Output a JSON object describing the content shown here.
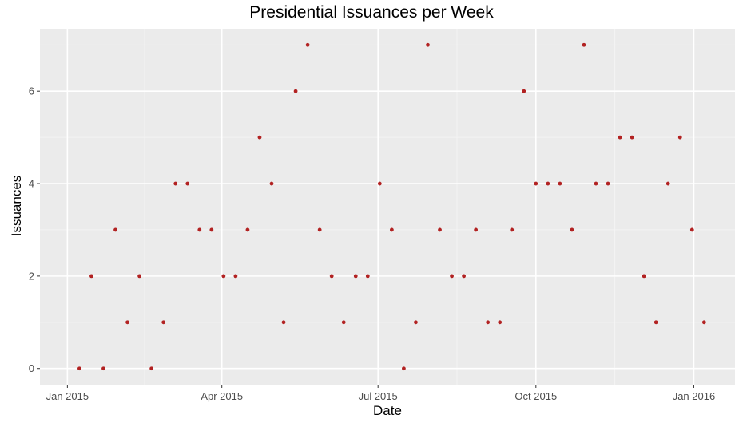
{
  "chart_data": {
    "type": "scatter",
    "title": "Presidential Issuances per Week",
    "xlabel": "Date",
    "ylabel": "Issuances",
    "x_ticks": [
      "Jan 2015",
      "Apr 2015",
      "Jul 2015",
      "Oct 2015",
      "Jan 2016"
    ],
    "x_tick_dates": [
      "2015-01-01",
      "2015-04-01",
      "2015-07-01",
      "2015-10-01",
      "2016-01-01"
    ],
    "y_ticks": [
      0,
      2,
      4,
      6
    ],
    "xlim": [
      "2014-12-16",
      "2016-01-25"
    ],
    "ylim": [
      -0.35,
      7.35
    ],
    "grid": true,
    "point_color": "#b22222",
    "panel_color": "#ebebeb",
    "series": [
      {
        "x": [
          "2015-01-08",
          "2015-01-15",
          "2015-01-22",
          "2015-01-29",
          "2015-02-05",
          "2015-02-12",
          "2015-02-19",
          "2015-02-26",
          "2015-03-05",
          "2015-03-12",
          "2015-03-19",
          "2015-03-26",
          "2015-04-02",
          "2015-04-09",
          "2015-04-16",
          "2015-04-23",
          "2015-04-30",
          "2015-05-07",
          "2015-05-14",
          "2015-05-21",
          "2015-05-28",
          "2015-06-04",
          "2015-06-11",
          "2015-06-18",
          "2015-06-25",
          "2015-07-02",
          "2015-07-09",
          "2015-07-16",
          "2015-07-23",
          "2015-07-30",
          "2015-08-06",
          "2015-08-13",
          "2015-08-20",
          "2015-08-27",
          "2015-09-03",
          "2015-09-10",
          "2015-09-17",
          "2015-09-24",
          "2015-10-01",
          "2015-10-08",
          "2015-10-15",
          "2015-10-22",
          "2015-10-29",
          "2015-11-05",
          "2015-11-12",
          "2015-11-19",
          "2015-11-26",
          "2015-12-03",
          "2015-12-10",
          "2015-12-17",
          "2015-12-24",
          "2015-12-31",
          "2016-01-07"
        ],
        "y": [
          0,
          2,
          0,
          3,
          1,
          2,
          0,
          1,
          4,
          4,
          3,
          3,
          2,
          2,
          3,
          5,
          4,
          1,
          6,
          7,
          3,
          2,
          1,
          2,
          2,
          4,
          3,
          0,
          1,
          7,
          3,
          2,
          2,
          3,
          1,
          1,
          3,
          6,
          4,
          4,
          4,
          3,
          7,
          4,
          4,
          5,
          5,
          2,
          1,
          4,
          5,
          3,
          1
        ]
      }
    ]
  }
}
